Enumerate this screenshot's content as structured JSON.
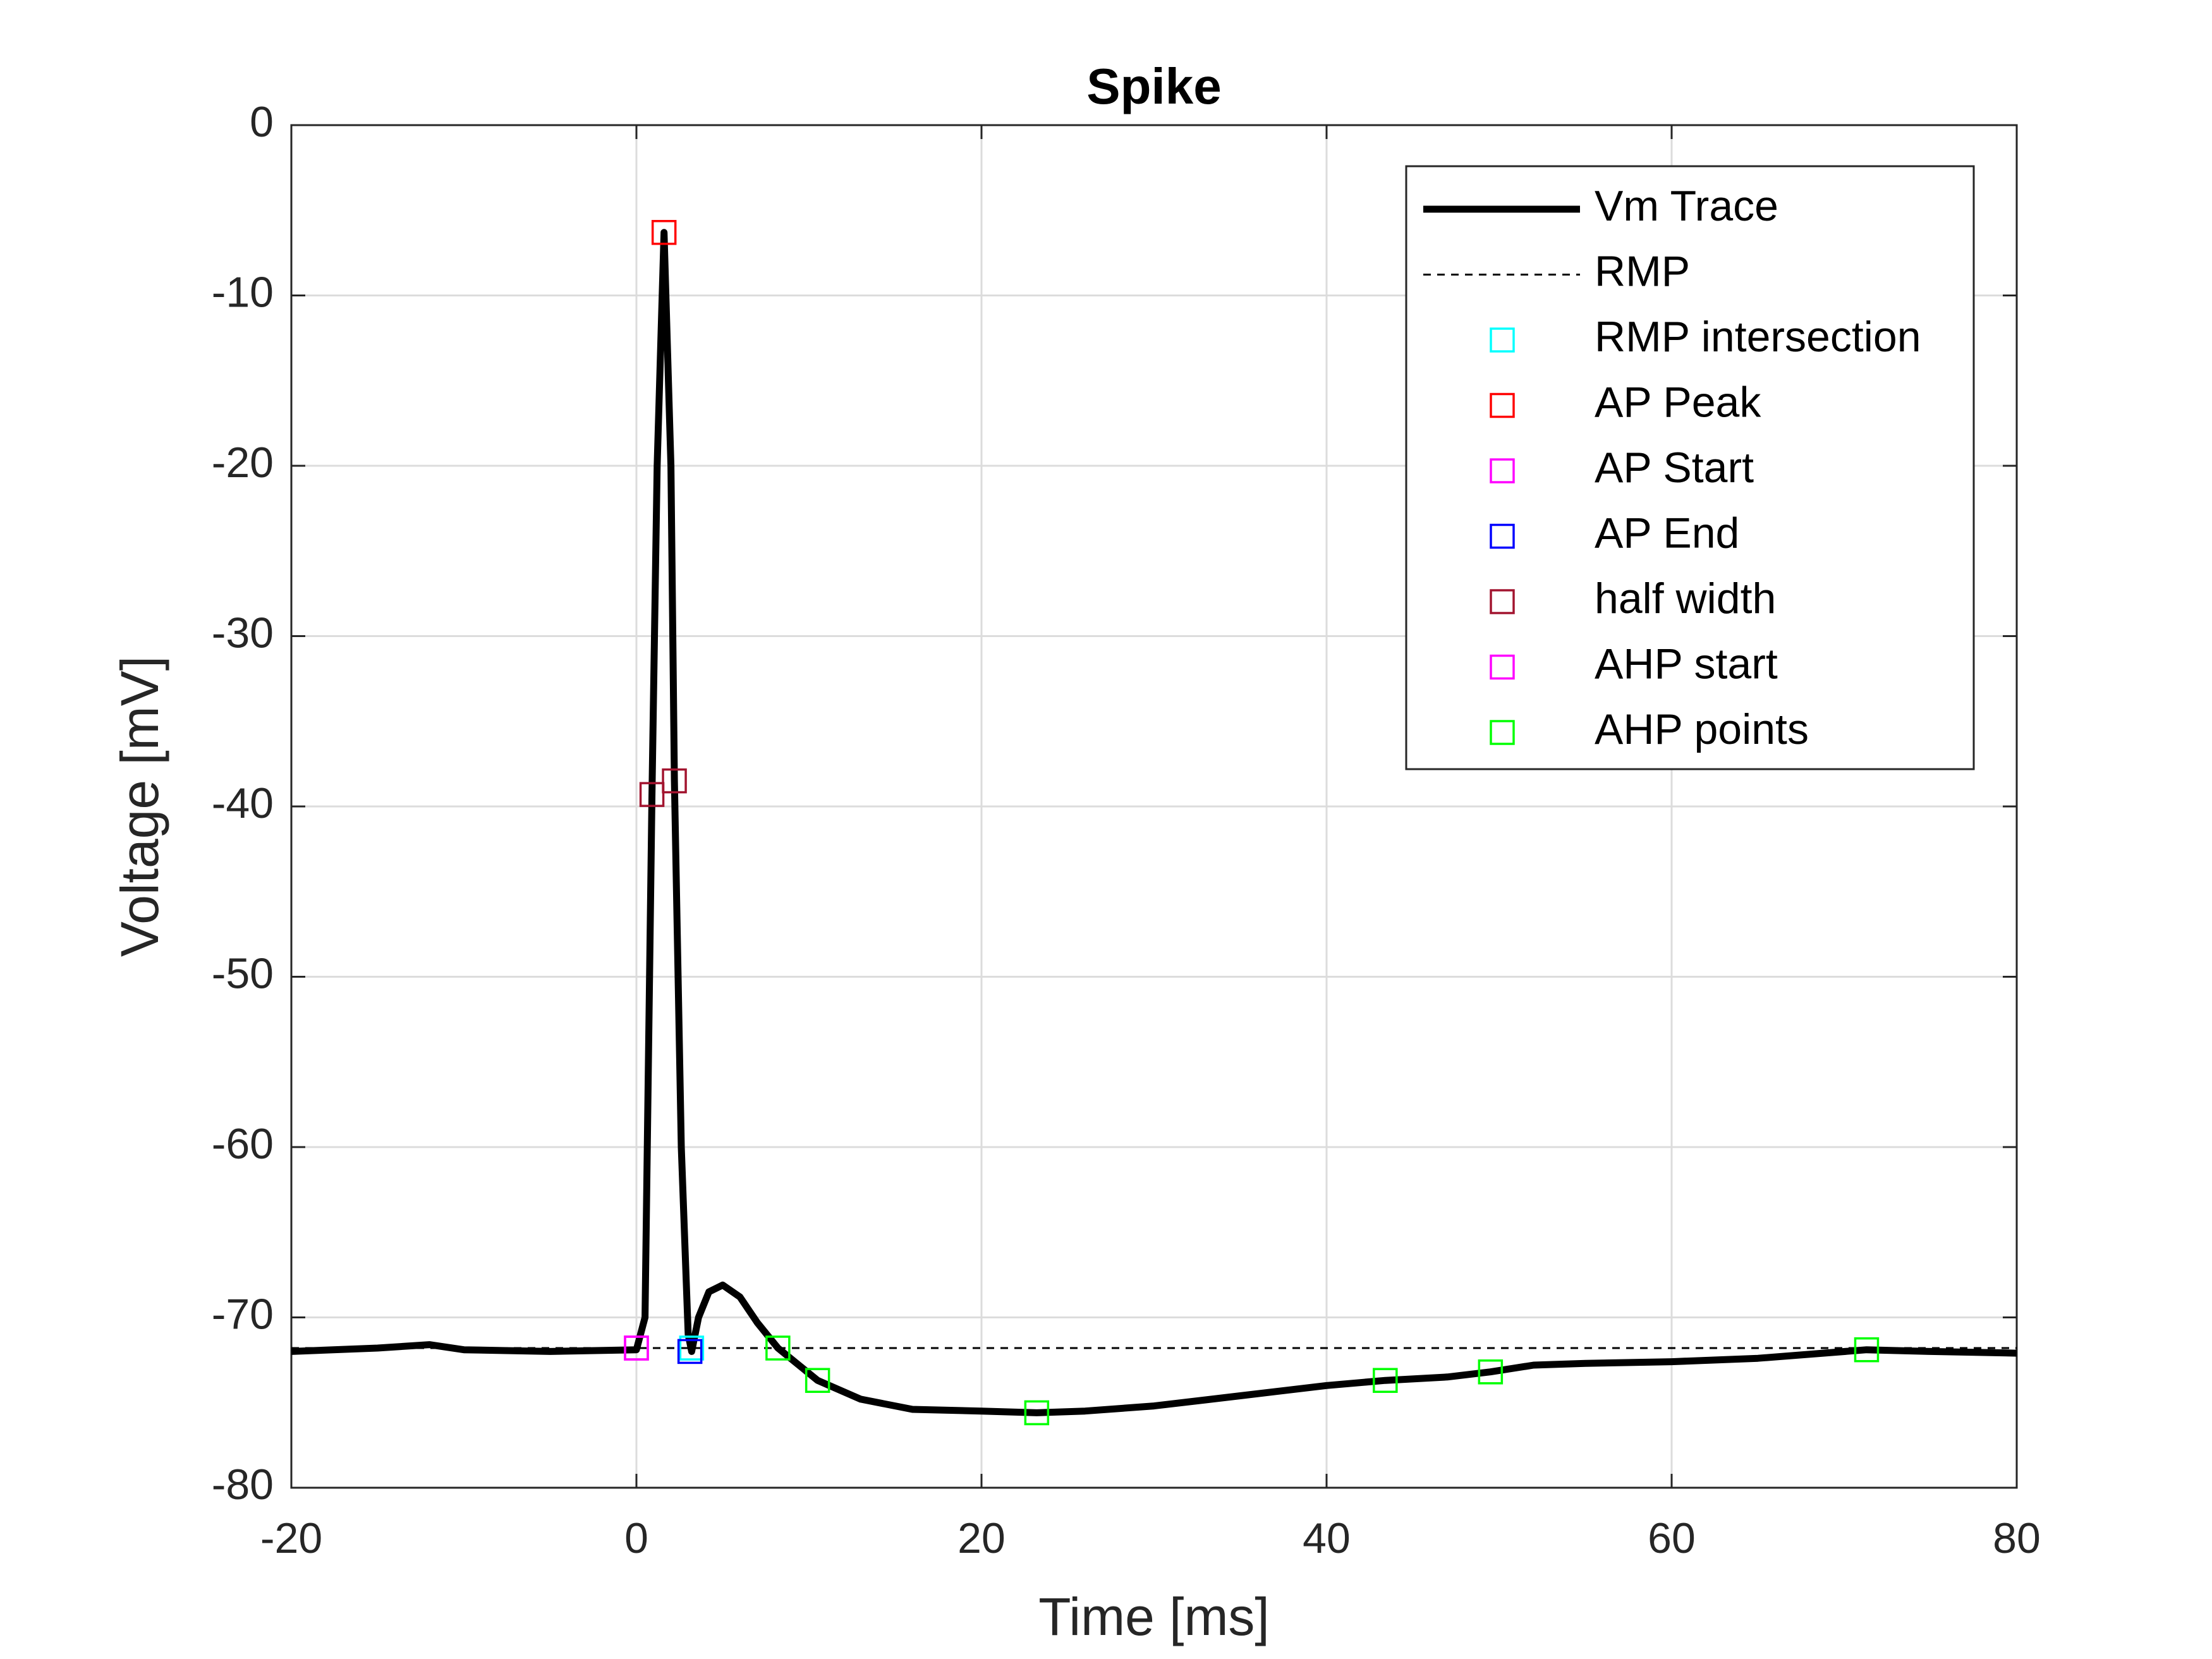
{
  "chart_data": {
    "type": "line",
    "title": "Spike",
    "xlabel": "Time [ms]",
    "ylabel": "Voltage [mV]",
    "xlim": [
      -20,
      80
    ],
    "ylim": [
      -80,
      0
    ],
    "xticks": [
      -20,
      0,
      20,
      40,
      60,
      80
    ],
    "yticks": [
      -80,
      -70,
      -60,
      -50,
      -40,
      -30,
      -20,
      -10,
      0
    ],
    "grid": true,
    "legend_location": "northeast",
    "series": [
      {
        "name": "Vm Trace",
        "color": "#000000",
        "style": "solid",
        "x": [
          -20,
          -15,
          -12,
          -10,
          -5,
          0,
          0.5,
          0.9,
          1.2,
          1.6,
          2.0,
          2.2,
          2.6,
          3.0,
          3.2,
          3.6,
          4.2,
          5,
          6,
          7,
          8.2,
          10.5,
          13,
          16,
          20,
          23.2,
          26,
          30,
          35,
          40,
          43.4,
          47,
          49.5,
          52,
          55,
          60,
          65,
          71.3,
          75,
          80
        ],
        "values": [
          -72.0,
          -71.8,
          -71.6,
          -71.9,
          -72.0,
          -71.9,
          -70,
          -39.3,
          -20,
          -6.3,
          -20,
          -38.5,
          -60,
          -71,
          -72.0,
          -70,
          -68.5,
          -68.1,
          -68.8,
          -70.3,
          -71.8,
          -73.7,
          -74.8,
          -75.4,
          -75.5,
          -75.6,
          -75.5,
          -75.2,
          -74.6,
          -74.0,
          -73.7,
          -73.5,
          -73.2,
          -72.8,
          -72.7,
          -72.6,
          -72.4,
          -71.9,
          -72.0,
          -72.1
        ]
      },
      {
        "name": "RMP",
        "color": "#000000",
        "style": "dashed",
        "x": [
          -20,
          80
        ],
        "values": [
          -71.8,
          -71.8
        ]
      },
      {
        "name": "RMP intersection",
        "color": "#00ffff",
        "style": "marker",
        "x": [
          3.2
        ],
        "values": [
          -71.8
        ]
      },
      {
        "name": "AP Peak",
        "color": "#ff0000",
        "style": "marker",
        "x": [
          1.6
        ],
        "values": [
          -6.3
        ]
      },
      {
        "name": "AP Start",
        "color": "#ff00ff",
        "style": "marker",
        "x": [
          0
        ],
        "values": [
          -71.8
        ]
      },
      {
        "name": "AP End",
        "color": "#0000ff",
        "style": "marker",
        "x": [
          3.1
        ],
        "values": [
          -72.0
        ]
      },
      {
        "name": "half width",
        "color": "#a2142f",
        "style": "marker",
        "x": [
          0.9,
          2.2
        ],
        "values": [
          -39.3,
          -38.5
        ]
      },
      {
        "name": "AHP start",
        "color": "#ff00ff",
        "style": "marker",
        "x": [
          0
        ],
        "values": [
          -71.8
        ]
      },
      {
        "name": "AHP points",
        "color": "#00ff00",
        "style": "marker",
        "x": [
          8.2,
          10.5,
          23.2,
          43.4,
          49.5,
          71.3
        ],
        "values": [
          -71.8,
          -73.7,
          -75.6,
          -73.7,
          -73.2,
          -71.9
        ]
      }
    ]
  }
}
